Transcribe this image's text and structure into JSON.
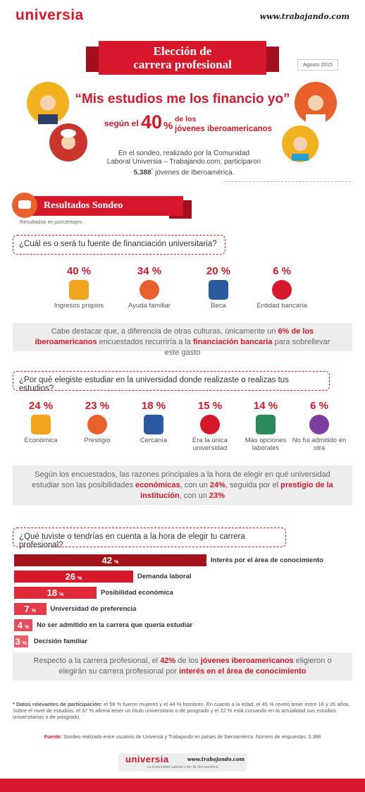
{
  "header": {
    "logo": "universia",
    "partner": "www.trabajando.com"
  },
  "title": {
    "lines": [
      "Elección de",
      "carrera profesional"
    ],
    "date": "Agosto 2015"
  },
  "quote": {
    "text": "“Mis estudios me los financio yo”",
    "prefix": "según el",
    "value": "40",
    "unit": "%",
    "suffix_lines": [
      "de los",
      "jóvenes iberoamericanos"
    ]
  },
  "intro": {
    "segments": [
      {
        "text": "En el sondeo, realizado por la Comunidad Laboral Universia – Trabajando.com, participaron "
      },
      {
        "text": "5.388",
        "style": "bold"
      },
      {
        "text": "*",
        "style": "sup"
      },
      {
        "text": " jóvenes de Iberoamérica."
      }
    ]
  },
  "section": {
    "title": "Resultados Sondeo",
    "note": "Resultados en porcentajes"
  },
  "q1": {
    "question": "¿Cuál es o será tu fuente de financiación universitaria?",
    "items": [
      {
        "percent": "40 %",
        "label": "Ingresos propios"
      },
      {
        "percent": "34 %",
        "label": "Ayuda familiar"
      },
      {
        "percent": "20 %",
        "label": "Beca"
      },
      {
        "percent": "6 %",
        "label": "Entidad bancaria"
      }
    ],
    "note": {
      "segments": [
        {
          "text": "Cabe destacar que, a diferencia de otras culturas, únicamente un "
        },
        {
          "text": "6% de los iberoamericanos",
          "style": "red"
        },
        {
          "text": " encuestados recurriría a la "
        },
        {
          "text": "financiación bancaria",
          "style": "red"
        },
        {
          "text": " para sobrellevar este gasto"
        }
      ]
    }
  },
  "q2": {
    "question": "¿Por qué elegiste estudiar en la universidad donde realizaste o realizas tus estudios?",
    "items": [
      {
        "percent": "24 %",
        "label": "Económica"
      },
      {
        "percent": "23 %",
        "label": "Prestigio"
      },
      {
        "percent": "18 %",
        "label": "Cercanía"
      },
      {
        "percent": "15 %",
        "label": "Era la única universidad"
      },
      {
        "percent": "14 %",
        "label": "Más opciones laborales"
      },
      {
        "percent": "6 %",
        "label": "No fui admitido en otra"
      }
    ],
    "note": {
      "segments": [
        {
          "text": "Según los encuestados, las razones principales a la hora de elegir en qué universidad estudiar son las posibilidades "
        },
        {
          "text": "económicas",
          "style": "red"
        },
        {
          "text": ", con un "
        },
        {
          "text": "24%",
          "style": "red"
        },
        {
          "text": ", seguida por el "
        },
        {
          "text": "prestigio de la institución",
          "style": "red"
        },
        {
          "text": ", con un "
        },
        {
          "text": "23%",
          "style": "red"
        }
      ]
    }
  },
  "q3": {
    "question": "¿Qué tuviste o tendrías en cuenta a la hora de elegir tu carrera profesional?",
    "percent_sign": "%",
    "bars": [
      {
        "value": 42,
        "label": "Interés por el área de conocimiento"
      },
      {
        "value": 26,
        "label": "Demanda laboral"
      },
      {
        "value": 18,
        "label": "Posibilidad económica"
      },
      {
        "value": 7,
        "label": "Universidad de preferencia"
      },
      {
        "value": 4,
        "label": "No ser admitido en la carrera que quería estudiar"
      },
      {
        "value": 3,
        "label": "Decisión familiar"
      }
    ],
    "note": {
      "segments": [
        {
          "text": "Respecto a la carrera profesional, el "
        },
        {
          "text": "42%",
          "style": "red"
        },
        {
          "text": " de los "
        },
        {
          "text": "jóvenes iberoamericanos",
          "style": "red"
        },
        {
          "text": " eligieron o elegirán su carrera profesional por "
        },
        {
          "text": "interés en el área de conocimiento",
          "style": "red"
        }
      ]
    }
  },
  "footnote": {
    "segments": [
      {
        "text": "* Datos relevantes de participación:",
        "style": "bold"
      },
      {
        "text": " el 56 % fueron mujeres y el 44 % hombres. En cuanto a la edad, el 45 % reveló tener entre 16 y 26 años. Sobre el nivel de estudios, el 37 % afirma tener un título universitario o de posgrado y el 22 % está cursando en la actualidad sus estudios universitarios o de posgrado."
      }
    ]
  },
  "source": {
    "segments": [
      {
        "text": "Fuente:",
        "style": "red"
      },
      {
        "text": " Sondeo realizado entre usuarios de Universia y Trabajando en países de Iberoamérica. Número de respuestas: 5.388"
      }
    ]
  },
  "footer": {
    "logo": "universia",
    "partner": "www.trabajando.com",
    "tagline": "La Comunidad Laboral Líder de Iberoamérica"
  }
}
